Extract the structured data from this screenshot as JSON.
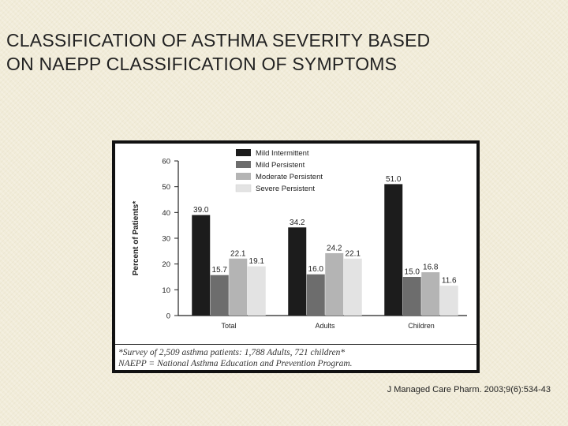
{
  "slide": {
    "title_line1": "CLASSIFICATION OF ASTHMA SEVERITY BASED",
    "title_line2": "ON NAEPP CLASSIFICATION OF SYMPTOMS",
    "citation": "J Managed Care Pharm. 2003;9(6):534-43"
  },
  "footnote": {
    "line1": "*Survey of 2,509 asthma patients: 1,788 Adults, 721 children*",
    "line2": "NAEPP = National Asthma Education and Prevention Program."
  },
  "chart_data": {
    "type": "bar",
    "title": "",
    "xlabel": "",
    "ylabel": "Percent of Patients*",
    "ylim": [
      0,
      60
    ],
    "yticks": [
      0,
      10,
      20,
      30,
      40,
      50,
      60
    ],
    "grid": false,
    "legend_position": "top-center",
    "categories": [
      "Total",
      "Adults",
      "Children"
    ],
    "series": [
      {
        "name": "Mild Intermittent",
        "color": "#1c1c1c",
        "values": [
          39.0,
          34.2,
          51.0
        ],
        "labels": [
          "39.0",
          "34.2",
          "51.0"
        ]
      },
      {
        "name": "Mild Persistent",
        "color": "#6d6d6d",
        "values": [
          15.7,
          16.0,
          15.0
        ],
        "labels": [
          "15.7",
          "16.0",
          "15.0"
        ]
      },
      {
        "name": "Moderate Persistent",
        "color": "#b4b4b4",
        "values": [
          22.1,
          24.2,
          16.8
        ],
        "labels": [
          "22.1",
          "24.2",
          "16.8"
        ]
      },
      {
        "name": "Severe Persistent",
        "color": "#e3e3e3",
        "values": [
          19.1,
          22.1,
          11.6
        ],
        "labels": [
          "19.1",
          "22.1",
          "11.6"
        ]
      }
    ]
  }
}
